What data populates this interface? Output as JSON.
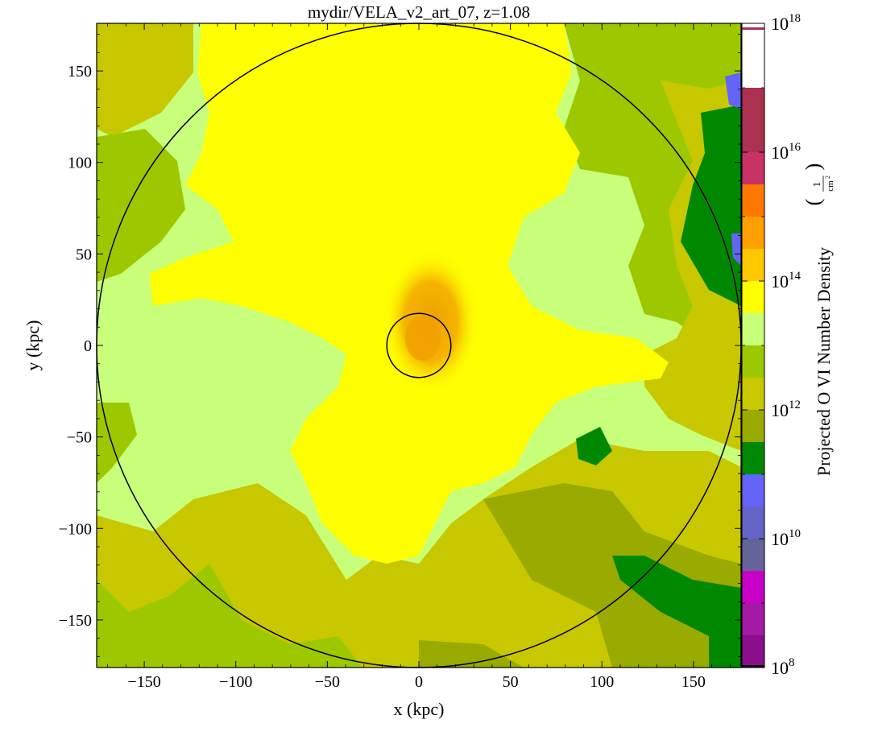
{
  "chart_data": {
    "type": "heatmap",
    "title": "mydir/VELA_v2_art_07, z=1.08",
    "xlabel": "x  (kpc)",
    "ylabel": "y  (kpc)",
    "xlim": [
      -176,
      176
    ],
    "ylim": [
      -176,
      176
    ],
    "x_ticks": [
      -150,
      -100,
      -50,
      0,
      50,
      100,
      150
    ],
    "y_ticks": [
      -150,
      -100,
      -50,
      0,
      50,
      100,
      150
    ],
    "x_tick_labels": [
      "−150",
      "−100",
      "−50",
      "0",
      "50",
      "100",
      "150"
    ],
    "y_tick_labels": [
      "−150",
      "−100",
      "−50",
      "0",
      "50",
      "100",
      "150"
    ],
    "colorbar": {
      "label": "Projected O VI Number Density",
      "unit_numerator": "1",
      "unit_denominator": "cm",
      "unit_denominator_power": "2",
      "scale": "log",
      "range_exponents": [
        8,
        18
      ],
      "tick_exponents": [
        8,
        10,
        12,
        14,
        16,
        18
      ],
      "tick_base": "10",
      "tick_exp_text": [
        "8",
        "10",
        "12",
        "14",
        "16",
        "18"
      ],
      "bands": [
        {
          "from": 8.0,
          "to": 8.5,
          "color": "#8b0f8b"
        },
        {
          "from": 8.5,
          "to": 9.0,
          "color": "#a319a3"
        },
        {
          "from": 9.0,
          "to": 9.5,
          "color": "#c800c8"
        },
        {
          "from": 9.5,
          "to": 10.0,
          "color": "#64649a"
        },
        {
          "from": 10.0,
          "to": 10.5,
          "color": "#6464c8"
        },
        {
          "from": 10.5,
          "to": 11.0,
          "color": "#6464f8"
        },
        {
          "from": 11.0,
          "to": 11.5,
          "color": "#008800"
        },
        {
          "from": 11.5,
          "to": 12.0,
          "color": "#99aa00"
        },
        {
          "from": 12.0,
          "to": 12.5,
          "color": "#c8c800"
        },
        {
          "from": 12.5,
          "to": 13.0,
          "color": "#9dc800"
        },
        {
          "from": 13.0,
          "to": 13.5,
          "color": "#c8ff7a"
        },
        {
          "from": 13.5,
          "to": 14.0,
          "color": "#ffff00"
        },
        {
          "from": 14.0,
          "to": 14.5,
          "color": "#ffc800"
        },
        {
          "from": 14.5,
          "to": 15.0,
          "color": "#ffa000"
        },
        {
          "from": 15.0,
          "to": 15.5,
          "color": "#ff7800"
        },
        {
          "from": 15.5,
          "to": 16.0,
          "color": "#c83264"
        },
        {
          "from": 16.0,
          "to": 16.5,
          "color": "#aa3250"
        },
        {
          "from": 16.5,
          "to": 17.0,
          "color": "#aa3250"
        }
      ]
    },
    "circles": [
      {
        "center": [
          0,
          0
        ],
        "radius_kpc": 176
      },
      {
        "center": [
          0,
          0
        ],
        "radius_kpc": 17.5
      }
    ],
    "regions": {
      "background": "#c8ff7a",
      "central_core": "#f5b000",
      "inner_halo": "#ffff00",
      "outer_low": "#c8c800",
      "far_right": "#008800"
    },
    "grid": false,
    "legend": "none"
  }
}
